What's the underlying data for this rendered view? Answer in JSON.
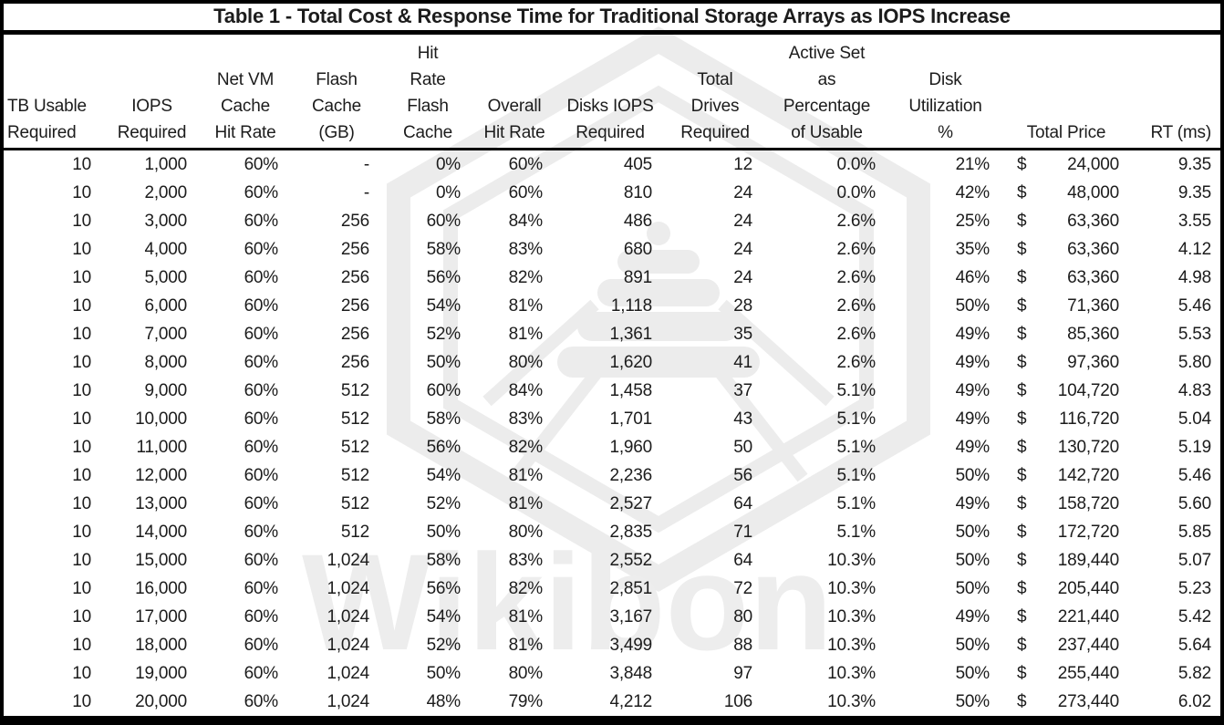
{
  "chart_data": {
    "type": "table",
    "title": "Table 1 - Total Cost & Response Time for Traditional Storage Arrays as IOPS Increase",
    "currency_symbol": "$",
    "watermark": {
      "logo": "wikibon-hive-hexagon",
      "text": "Wikibon"
    },
    "columns": [
      {
        "id": "tb-usable-required",
        "label": "TB Usable Required",
        "header_lines": [
          "TB Usable",
          "Required"
        ]
      },
      {
        "id": "iops-required",
        "label": "IOPS Required",
        "header_lines": [
          "IOPS",
          "Required"
        ]
      },
      {
        "id": "net-vm-cache-hit-rate",
        "label": "Net VM Cache Hit Rate",
        "header_lines": [
          "Net VM",
          "Cache",
          "Hit Rate"
        ]
      },
      {
        "id": "flash-cache-gb",
        "label": "Flash Cache (GB)",
        "header_lines": [
          "Flash",
          "Cache",
          "(GB)"
        ]
      },
      {
        "id": "hit-rate-flash-cache",
        "label": "Hit Rate Flash Cache",
        "header_lines": [
          "Hit",
          "Rate",
          "Flash",
          "Cache"
        ]
      },
      {
        "id": "overall-hit-rate",
        "label": "Overall Hit Rate",
        "header_lines": [
          "Overall",
          "Hit Rate"
        ]
      },
      {
        "id": "disks-iops-required",
        "label": "Disks IOPS Required",
        "header_lines": [
          "Disks IOPS",
          "Required"
        ]
      },
      {
        "id": "total-drives-required",
        "label": "Total Drives Required",
        "header_lines": [
          "Total",
          "Drives",
          "Required"
        ]
      },
      {
        "id": "active-set-pct-usable",
        "label": "Active Set as Percentage of Usable",
        "header_lines": [
          "Active Set",
          "as",
          "Percentage",
          "of Usable"
        ]
      },
      {
        "id": "disk-utilization-pct",
        "label": "Disk Utilization %",
        "header_lines": [
          "Disk",
          "Utilization",
          "%"
        ]
      },
      {
        "id": "total-price",
        "label": "Total Price",
        "header_lines": [
          "Total Price"
        ]
      },
      {
        "id": "rt-ms",
        "label": "RT (ms)",
        "header_lines": [
          "RT (ms)"
        ]
      }
    ],
    "rows": [
      [
        "10",
        "1,000",
        "60%",
        "-",
        "0%",
        "60%",
        "405",
        "12",
        "0.0%",
        "21%",
        "24,000",
        "9.35"
      ],
      [
        "10",
        "2,000",
        "60%",
        "-",
        "0%",
        "60%",
        "810",
        "24",
        "0.0%",
        "42%",
        "48,000",
        "9.35"
      ],
      [
        "10",
        "3,000",
        "60%",
        "256",
        "60%",
        "84%",
        "486",
        "24",
        "2.6%",
        "25%",
        "63,360",
        "3.55"
      ],
      [
        "10",
        "4,000",
        "60%",
        "256",
        "58%",
        "83%",
        "680",
        "24",
        "2.6%",
        "35%",
        "63,360",
        "4.12"
      ],
      [
        "10",
        "5,000",
        "60%",
        "256",
        "56%",
        "82%",
        "891",
        "24",
        "2.6%",
        "46%",
        "63,360",
        "4.98"
      ],
      [
        "10",
        "6,000",
        "60%",
        "256",
        "54%",
        "81%",
        "1,118",
        "28",
        "2.6%",
        "50%",
        "71,360",
        "5.46"
      ],
      [
        "10",
        "7,000",
        "60%",
        "256",
        "52%",
        "81%",
        "1,361",
        "35",
        "2.6%",
        "49%",
        "85,360",
        "5.53"
      ],
      [
        "10",
        "8,000",
        "60%",
        "256",
        "50%",
        "80%",
        "1,620",
        "41",
        "2.6%",
        "49%",
        "97,360",
        "5.80"
      ],
      [
        "10",
        "9,000",
        "60%",
        "512",
        "60%",
        "84%",
        "1,458",
        "37",
        "5.1%",
        "49%",
        "104,720",
        "4.83"
      ],
      [
        "10",
        "10,000",
        "60%",
        "512",
        "58%",
        "83%",
        "1,701",
        "43",
        "5.1%",
        "49%",
        "116,720",
        "5.04"
      ],
      [
        "10",
        "11,000",
        "60%",
        "512",
        "56%",
        "82%",
        "1,960",
        "50",
        "5.1%",
        "49%",
        "130,720",
        "5.19"
      ],
      [
        "10",
        "12,000",
        "60%",
        "512",
        "54%",
        "81%",
        "2,236",
        "56",
        "5.1%",
        "50%",
        "142,720",
        "5.46"
      ],
      [
        "10",
        "13,000",
        "60%",
        "512",
        "52%",
        "81%",
        "2,527",
        "64",
        "5.1%",
        "49%",
        "158,720",
        "5.60"
      ],
      [
        "10",
        "14,000",
        "60%",
        "512",
        "50%",
        "80%",
        "2,835",
        "71",
        "5.1%",
        "50%",
        "172,720",
        "5.85"
      ],
      [
        "10",
        "15,000",
        "60%",
        "1,024",
        "58%",
        "83%",
        "2,552",
        "64",
        "10.3%",
        "50%",
        "189,440",
        "5.07"
      ],
      [
        "10",
        "16,000",
        "60%",
        "1,024",
        "56%",
        "82%",
        "2,851",
        "72",
        "10.3%",
        "50%",
        "205,440",
        "5.23"
      ],
      [
        "10",
        "17,000",
        "60%",
        "1,024",
        "54%",
        "81%",
        "3,167",
        "80",
        "10.3%",
        "49%",
        "221,440",
        "5.42"
      ],
      [
        "10",
        "18,000",
        "60%",
        "1,024",
        "52%",
        "81%",
        "3,499",
        "88",
        "10.3%",
        "50%",
        "237,440",
        "5.64"
      ],
      [
        "10",
        "19,000",
        "60%",
        "1,024",
        "50%",
        "80%",
        "3,848",
        "97",
        "10.3%",
        "50%",
        "255,440",
        "5.82"
      ],
      [
        "10",
        "20,000",
        "60%",
        "1,024",
        "48%",
        "79%",
        "4,212",
        "106",
        "10.3%",
        "50%",
        "273,440",
        "6.02"
      ]
    ]
  }
}
